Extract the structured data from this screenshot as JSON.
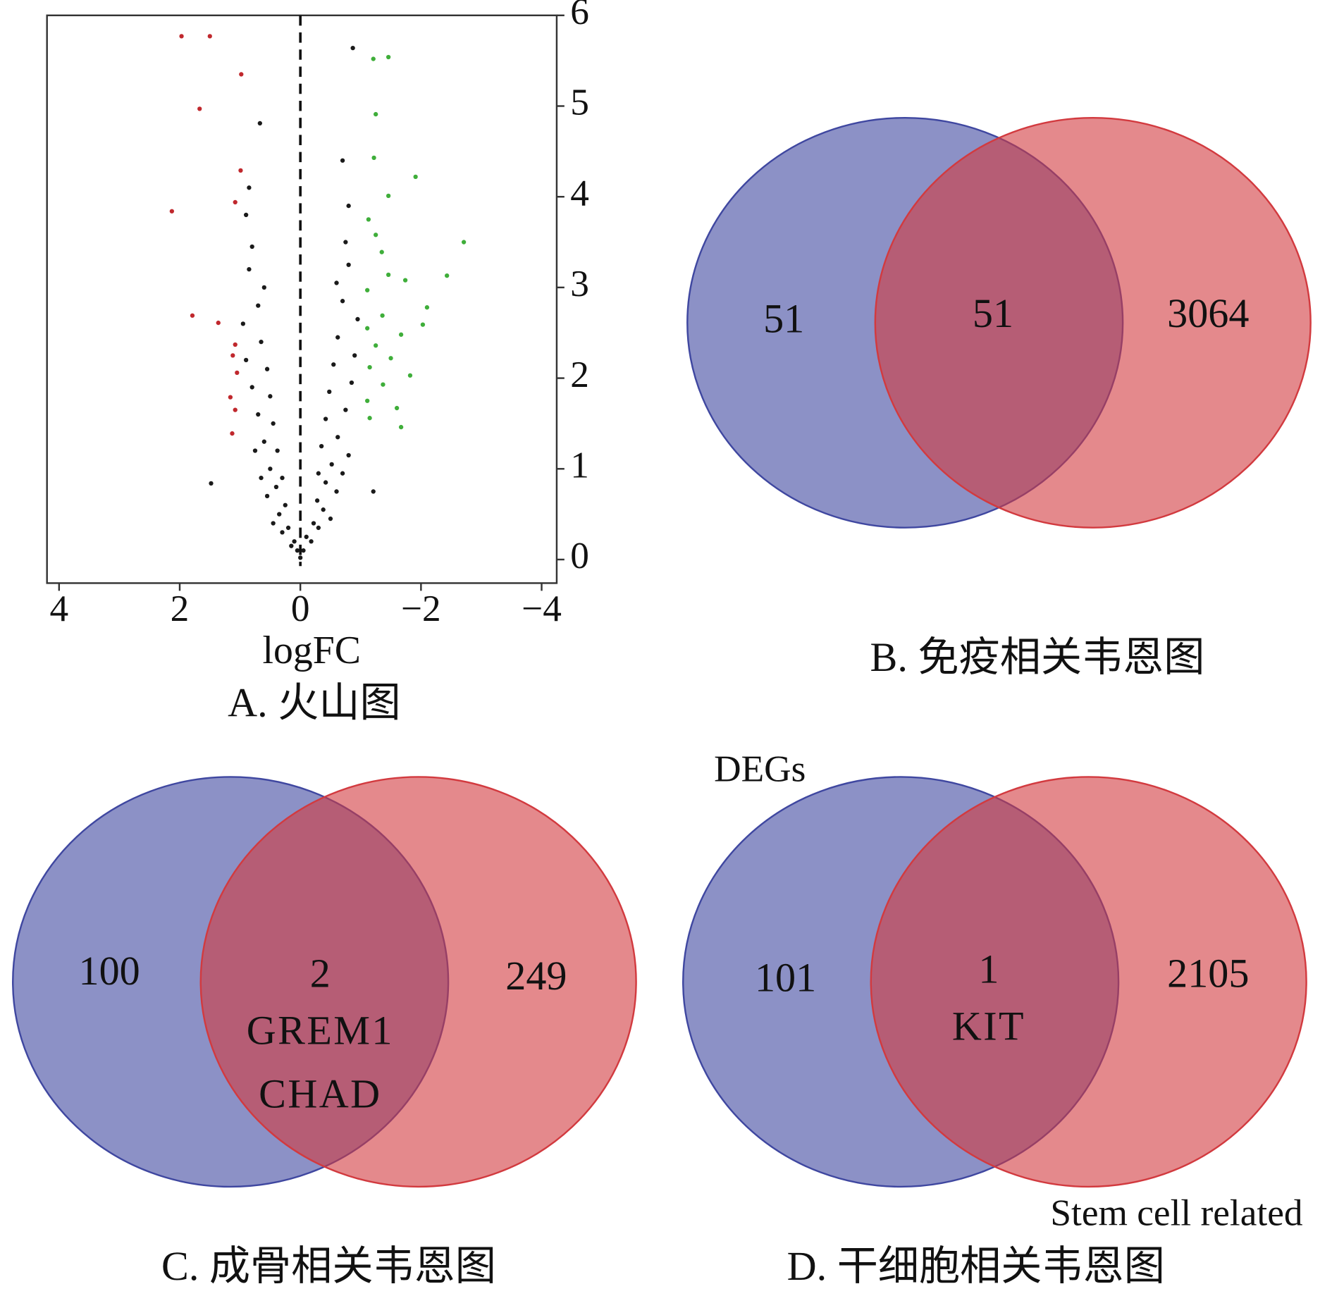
{
  "chart_data": [
    {
      "type": "scatter",
      "xlabel": "logFC",
      "caption": "A. 火山图",
      "xlim": [
        4.2,
        -4.25
      ],
      "ylim": [
        -0.26,
        6
      ],
      "xticks": [
        4,
        2,
        0,
        {
          "value": -2,
          "label": "−2"
        },
        {
          "value": -4,
          "label": "−4"
        }
      ],
      "yticks": [
        0,
        1,
        2,
        3,
        4,
        5,
        6
      ],
      "vline": 0,
      "series": [
        {
          "color": "#c0282d",
          "x": [
            1.97,
            1.5,
            0.98,
            1.67,
            0.99,
            2.13,
            1.08,
            1.79,
            1.36,
            1.08,
            1.12,
            1.05,
            1.16,
            1.08,
            1.13
          ],
          "values": [
            5.77,
            5.77,
            5.35,
            4.97,
            4.29,
            3.84,
            3.94,
            2.69,
            2.61,
            2.37,
            2.25,
            2.06,
            1.79,
            1.65,
            1.39
          ]
        },
        {
          "color": "#1a1a1a",
          "x": [
            0,
            0.05,
            -0.05,
            0.1,
            -0.1,
            0.15,
            -0.18,
            0.2,
            -0.22,
            0.3,
            -0.3,
            0.35,
            -0.38,
            0.25,
            -0.28,
            0.45,
            -0.5,
            0.4,
            -0.42,
            0.55,
            -0.6,
            0.3,
            -0.3,
            0.5,
            -0.52,
            0.65,
            -0.7,
            0.38,
            -0.35,
            0.6,
            -0.62,
            0.75,
            -0.8,
            0.45,
            -0.42,
            0.7,
            -0.75,
            0.5,
            -0.48,
            0.8,
            -0.85,
            0.55,
            -0.55,
            0.9,
            -0.9,
            0.65,
            -0.62,
            0.95,
            -0.95,
            0.7,
            -0.7,
            0.6,
            -0.6,
            0.85,
            -0.8,
            0.8,
            -0.75,
            0.9,
            -0.8,
            0.85,
            -0.7,
            0.67,
            -0.87,
            1.48,
            -1.21
          ],
          "values": [
            0.02,
            0.1,
            0.1,
            0.2,
            0.25,
            0.15,
            0.2,
            0.35,
            0.4,
            0.3,
            0.35,
            0.5,
            0.55,
            0.6,
            0.65,
            0.4,
            0.45,
            0.8,
            0.85,
            0.7,
            0.75,
            0.9,
            0.95,
            1.0,
            1.05,
            0.9,
            0.95,
            1.2,
            1.25,
            1.3,
            1.35,
            1.2,
            1.15,
            1.5,
            1.55,
            1.6,
            1.65,
            1.8,
            1.85,
            1.9,
            1.95,
            2.1,
            2.15,
            2.2,
            2.25,
            2.4,
            2.45,
            2.6,
            2.65,
            2.8,
            2.85,
            3.0,
            3.05,
            3.2,
            3.25,
            3.45,
            3.5,
            3.8,
            3.9,
            4.1,
            4.4,
            4.81,
            5.64,
            0.84,
            0.75
          ]
        },
        {
          "color": "#3fae3a",
          "x": [
            -1.21,
            -1.46,
            -1.25,
            -1.22,
            -1.91,
            -1.46,
            -1.13,
            -1.25,
            -2.71,
            -1.35,
            -2.43,
            -1.46,
            -1.11,
            -1.74,
            -2.1,
            -1.36,
            -1.11,
            -2.03,
            -1.67,
            -1.25,
            -1.5,
            -1.15,
            -1.82,
            -1.37,
            -1.11,
            -1.6,
            -1.15,
            -1.67
          ],
          "values": [
            5.52,
            5.54,
            4.91,
            4.43,
            4.22,
            4.01,
            3.75,
            3.58,
            3.5,
            3.39,
            3.13,
            3.14,
            2.97,
            3.08,
            2.78,
            2.69,
            2.55,
            2.59,
            2.48,
            2.36,
            2.22,
            2.12,
            2.03,
            1.93,
            1.75,
            1.67,
            1.56,
            1.46
          ]
        }
      ]
    },
    {
      "type": "venn",
      "caption": "B. 免疫相关韦恩图",
      "colors": [
        "#3f47a0",
        "#d23a3f"
      ],
      "regions": [
        {
          "count": 51
        },
        {
          "count": 51
        },
        {
          "count": 3064
        }
      ]
    },
    {
      "type": "venn",
      "caption": "C. 成骨相关韦恩图",
      "colors": [
        "#3f47a0",
        "#d23a3f"
      ],
      "regions": [
        {
          "count": 100
        },
        {
          "count": 2,
          "genes": [
            "GREM1",
            "CHAD"
          ]
        },
        {
          "count": 249
        }
      ]
    },
    {
      "type": "venn",
      "caption": "D. 干细胞相关韦恩图",
      "colors": [
        "#3f47a0",
        "#d23a3f"
      ],
      "sets": [
        "DEGs",
        "Stem cell related"
      ],
      "regions": [
        {
          "count": 101
        },
        {
          "count": 1,
          "genes": [
            "KIT"
          ]
        },
        {
          "count": 2105
        }
      ]
    }
  ]
}
